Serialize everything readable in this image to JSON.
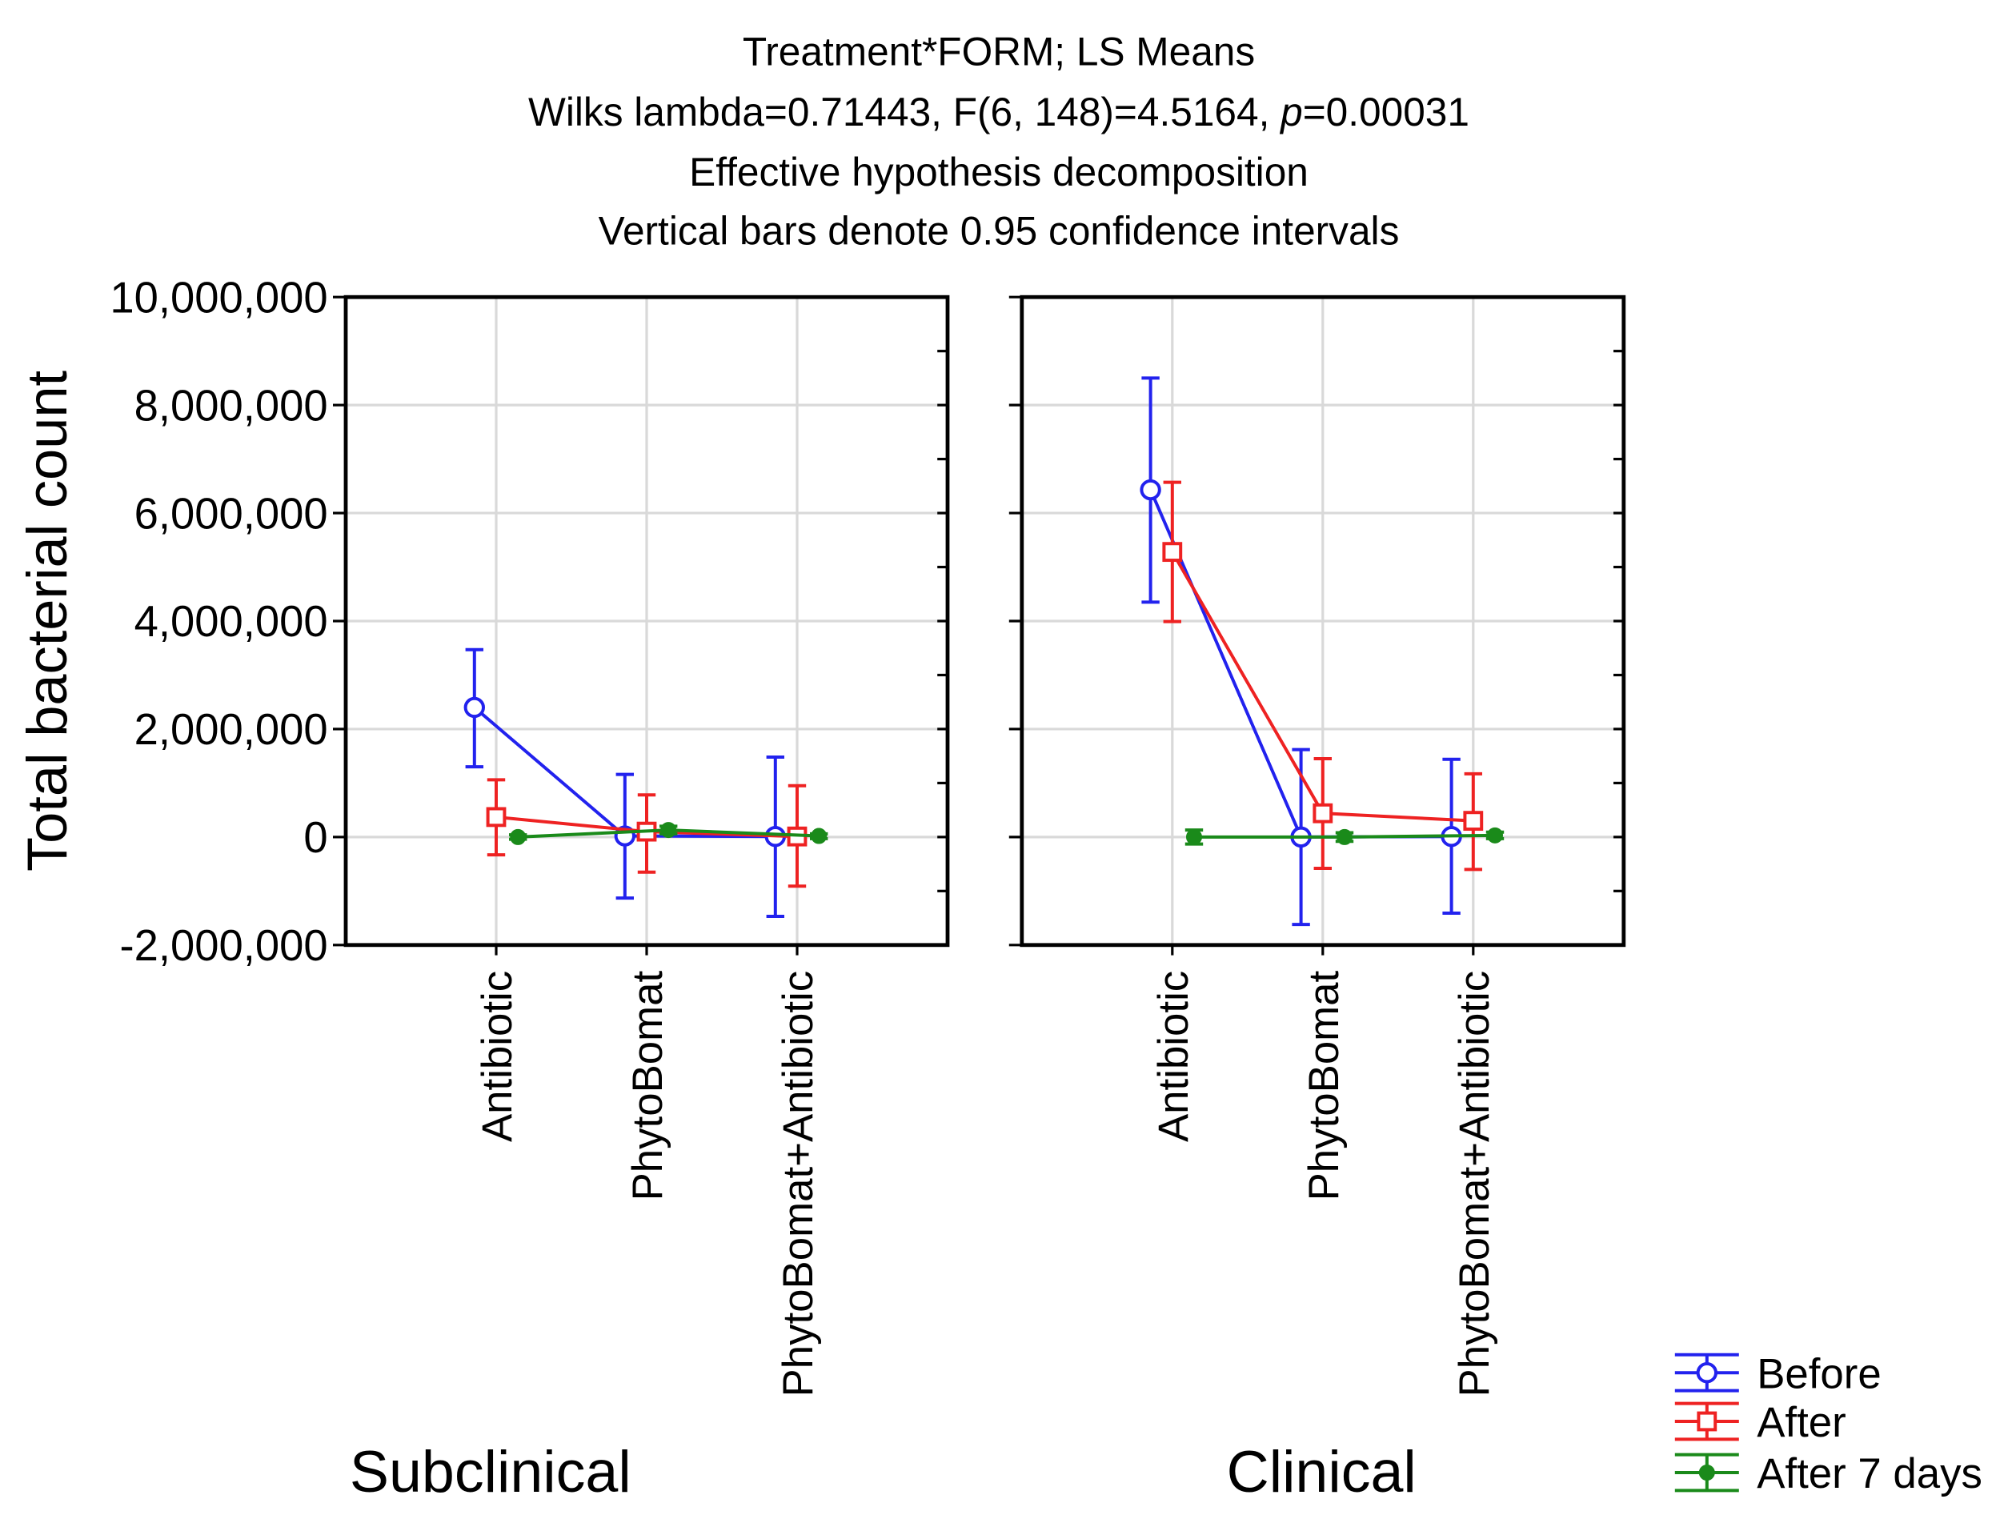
{
  "chart_data": {
    "type": "line",
    "title": "Treatment*FORM; LS Means",
    "stats": {
      "prefix": "Wilks lambda=0.71443, F(6, 148)=4.5164, ",
      "p_label": "p",
      "p_value": "=0.00031"
    },
    "subtitle_lines": [
      "Effective hypothesis decomposition",
      "Vertical bars denote 0.95 confidence intervals"
    ],
    "ylabel": "Total bacterial count",
    "ylim": [
      -2000000,
      10000000
    ],
    "yticks": [
      10000000,
      8000000,
      6000000,
      4000000,
      2000000,
      0,
      -2000000
    ],
    "ytick_labels": [
      "10,000,000",
      "8,000,000",
      "6,000,000",
      "4,000,000",
      "2,000,000",
      "0",
      "-2,000,000"
    ],
    "grid": true,
    "categories": [
      "Antibiotic",
      "PhytoBomat",
      "PhytoBomat+Antibiotic"
    ],
    "panels": [
      {
        "label": "Subclinical",
        "series": [
          {
            "name": "Before",
            "values": [
              2400000,
              20000,
              10000
            ],
            "ci_low": [
              1300000,
              -1130000,
              -1470000
            ],
            "ci_high": [
              3470000,
              1160000,
              1480000
            ]
          },
          {
            "name": "After",
            "values": [
              370000,
              100000,
              10000
            ],
            "ci_low": [
              -330000,
              -650000,
              -910000
            ],
            "ci_high": [
              1060000,
              780000,
              950000
            ]
          },
          {
            "name": "After 7 days",
            "values": [
              0,
              130000,
              20000
            ],
            "ci_low": [
              -40000,
              60000,
              -30000
            ],
            "ci_high": [
              40000,
              200000,
              60000
            ]
          }
        ]
      },
      {
        "label": "Clinical",
        "series": [
          {
            "name": "Before",
            "values": [
              6430000,
              0,
              10000
            ],
            "ci_low": [
              4350000,
              -1620000,
              -1410000
            ],
            "ci_high": [
              8500000,
              1620000,
              1440000
            ]
          },
          {
            "name": "After",
            "values": [
              5280000,
              440000,
              300000
            ],
            "ci_low": [
              3990000,
              -580000,
              -600000
            ],
            "ci_high": [
              6570000,
              1450000,
              1170000
            ]
          },
          {
            "name": "After 7 days",
            "values": [
              0,
              0,
              30000
            ],
            "ci_low": [
              -130000,
              -80000,
              -30000
            ],
            "ci_high": [
              130000,
              80000,
              90000
            ]
          }
        ]
      }
    ],
    "legend": {
      "position": "bottom-right",
      "entries": [
        {
          "name": "Before",
          "color": "#2222ee",
          "marker": "open-circle"
        },
        {
          "name": "After",
          "color": "#ee2222",
          "marker": "open-square"
        },
        {
          "name": "After 7 days",
          "color": "#1a8a1a",
          "marker": "filled-dot"
        }
      ]
    }
  }
}
